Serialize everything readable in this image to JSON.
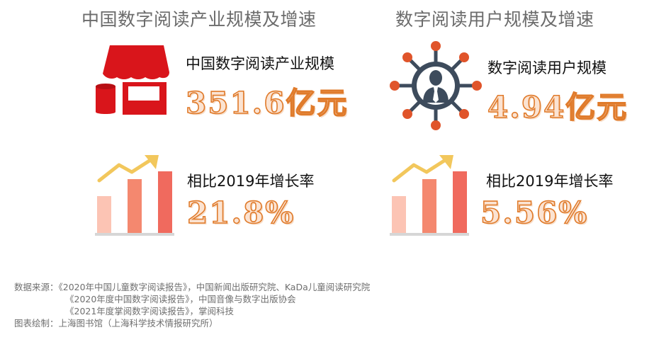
{
  "left": {
    "section_title": "中国数字阅读产业规模及增速",
    "metric1_label": "中国数字阅读产业规模",
    "metric1_value": "351.6亿元",
    "metric2_label": "相比2019年增长率",
    "metric2_value": "21.8%"
  },
  "right": {
    "section_title": "数字阅读用户规模及增速",
    "metric1_label": "数字阅读用户规模",
    "metric1_value": "4.94亿元",
    "metric2_label": "相比2019年增长率",
    "metric2_value": "5.56%"
  },
  "icons": {
    "store": "store-icon",
    "user_network": "user-network-icon",
    "growth_chart": "growth-bar-chart-icon"
  },
  "colors": {
    "store_red": "#d9151b",
    "hub_dark": "#3d4b5c",
    "node_orange": "#e0542a",
    "bar_light": "#fcc4b4",
    "bar_mid": "#f4886f",
    "bar_dark": "#f06a5e",
    "arrow_yellow": "#f2c75c",
    "number_stroke": "#e07b2b"
  },
  "footer": {
    "line1": "数据来源：《2020年中国儿童数字阅读报告》，中国新闻出版研究院、KaDa儿童阅读研究院",
    "line2": "《2020年度中国数字阅读报告》，中国音像与数字出版协会",
    "line3": "《2021年度掌阅数字阅读报告》，掌阅科技",
    "line4": "图表绘制：上海图书馆（上海科学技术情报研究所）"
  }
}
